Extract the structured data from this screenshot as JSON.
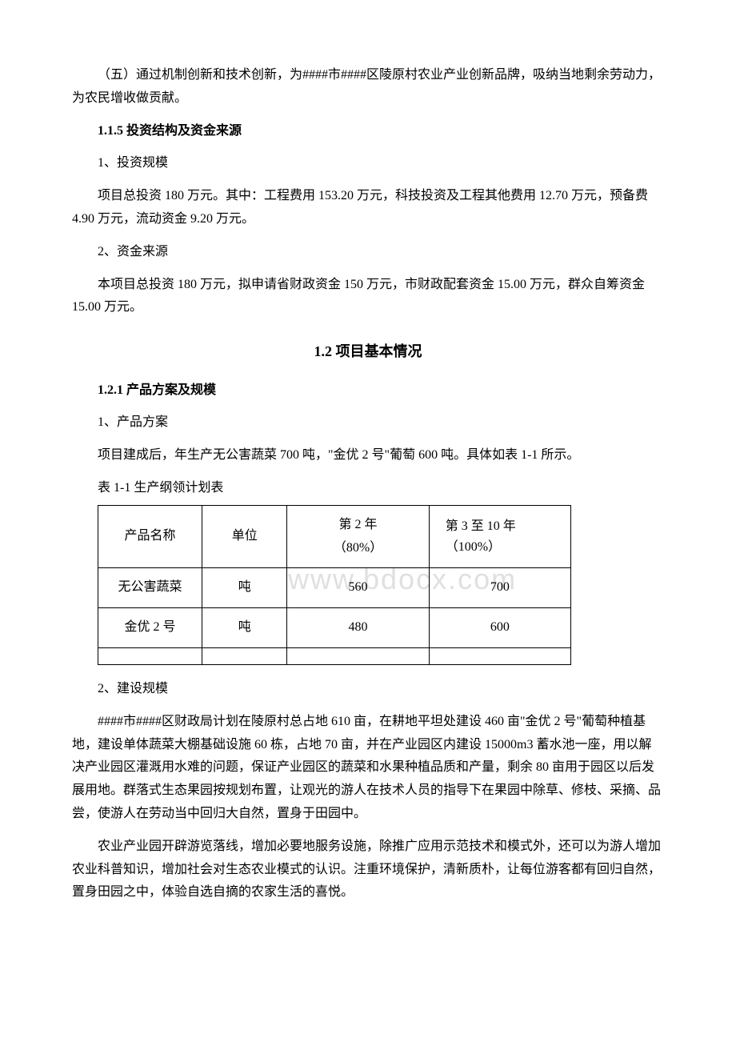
{
  "watermark": "www.bdocx.com",
  "para1": "（五）通过机制创新和技术创新，为####市####区陵原村农业产业创新品牌，吸纳当地剩余劳动力，为农民增收做贡献。",
  "h115": "1.1.5 投资结构及资金来源",
  "p_invest_scale_label": "1、投资规模",
  "p_invest_scale_body": "项目总投资 180 万元。其中：工程费用 153.20 万元，科技投资及工程其他费用 12.70 万元，预备费 4.90 万元，流动资金 9.20 万元。",
  "p_fund_source_label": "2、资金来源",
  "p_fund_source_body": "本项目总投资 180 万元，拟申请省财政资金 150 万元，市财政配套资金 15.00 万元，群众自筹资金 15.00 万元。",
  "sec12": "1.2 项目基本情况",
  "h121": "1.2.1 产品方案及规模",
  "p_product_label": "1、产品方案",
  "p_product_body": "项目建成后，年生产无公害蔬菜 700 吨，\"金优 2 号\"葡萄 600 吨。具体如表 1-1 所示。",
  "table_caption": "表 1-1 生产纲领计划表",
  "table": {
    "headers": {
      "c1": "产品名称",
      "c2": "单位",
      "c3_l1": "第 2 年",
      "c3_l2": "（80%）",
      "c4_l1": "第 3 至 10 年",
      "c4_l2": "（100%）"
    },
    "rows": [
      {
        "name": "无公害蔬菜",
        "unit": "吨",
        "y2": "560",
        "y3": "700"
      },
      {
        "name": "金优 2 号",
        "unit": "吨",
        "y2": "480",
        "y3": "600"
      },
      {
        "name": "",
        "unit": "",
        "y2": "",
        "y3": ""
      }
    ]
  },
  "p_build_label": "2、建设规模",
  "p_build_body1": "####市####区财政局计划在陵原村总占地 610 亩，在耕地平坦处建设 460 亩\"金优 2 号\"葡萄种植基地，建设单体蔬菜大棚基础设施 60 栋，占地 70 亩，并在产业园区内建设 15000m3 蓄水池一座，用以解决产业园区灌溉用水难的问题，保证产业园区的蔬菜和水果种植品质和产量，剩余 80 亩用于园区以后发展用地。群落式生态果园按规划布置，让观光的游人在技术人员的指导下在果园中除草、修枝、采摘、品尝，使游人在劳动当中回归大自然，置身于田园中。",
  "p_build_body2": "农业产业园开辟游览落线，增加必要地服务设施，除推广应用示范技术和模式外，还可以为游人增加农业科普知识，增加社会对生态农业模式的认识。注重环境保护，清新质朴，让每位游客都有回归自然，置身田园之中，体验自选自摘的农家生活的喜悦。"
}
